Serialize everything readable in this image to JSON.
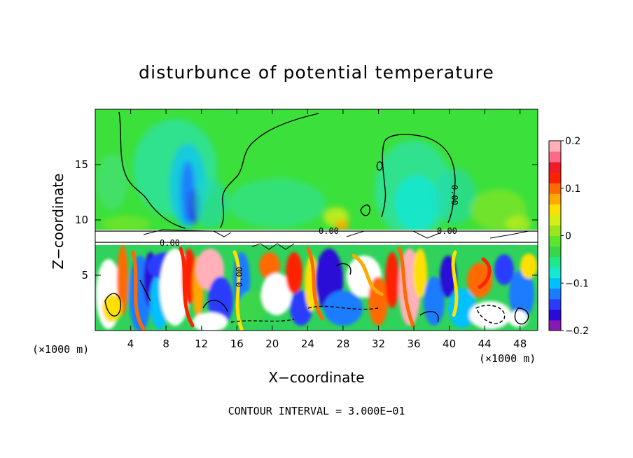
{
  "chart_data": {
    "type": "heatmap",
    "title": "disturbunce of potential temperature",
    "xlabel": "X−coordinate",
    "ylabel": "Z−coordinate",
    "x_unit_left": "(×1000 m)",
    "x_unit_right": "(×1000 m)",
    "xlim": [
      0,
      50
    ],
    "ylim": [
      0,
      20
    ],
    "x_ticks": [
      4,
      8,
      12,
      16,
      20,
      24,
      28,
      32,
      36,
      40,
      44,
      48
    ],
    "x_tick_labels": [
      "4",
      "8",
      "12",
      "16",
      "20",
      "24",
      "28",
      "32",
      "36",
      "40",
      "44",
      "48"
    ],
    "y_ticks": [
      5,
      10,
      15
    ],
    "y_tick_labels": [
      "5",
      "10",
      "15"
    ],
    "colorbar": {
      "range": [
        -0.2,
        0.2
      ],
      "tick_values": [
        0.2,
        0.1,
        0,
        -0.1,
        -0.2
      ],
      "tick_labels": [
        "0.2",
        "0.1",
        "0",
        "−0.1",
        "−0.2"
      ],
      "colors": [
        "#8a18b8",
        "#2a0ad6",
        "#2b3cff",
        "#1a7cff",
        "#00c0ff",
        "#16e8d4",
        "#1ee88a",
        "#3ad64a",
        "#5ce62c",
        "#9ae61c",
        "#d6ee18",
        "#ffe000",
        "#ffa800",
        "#ff6a00",
        "#ff2200",
        "#f21a2a",
        "#ff6a8a",
        "#ffb0b8"
      ]
    },
    "contour_labels": [
      "0.00",
      "0.00",
      "0.00",
      "0.00",
      "0.00"
    ],
    "contour_interval_text": "CONTOUR INTERVAL =  3.000E−01"
  }
}
